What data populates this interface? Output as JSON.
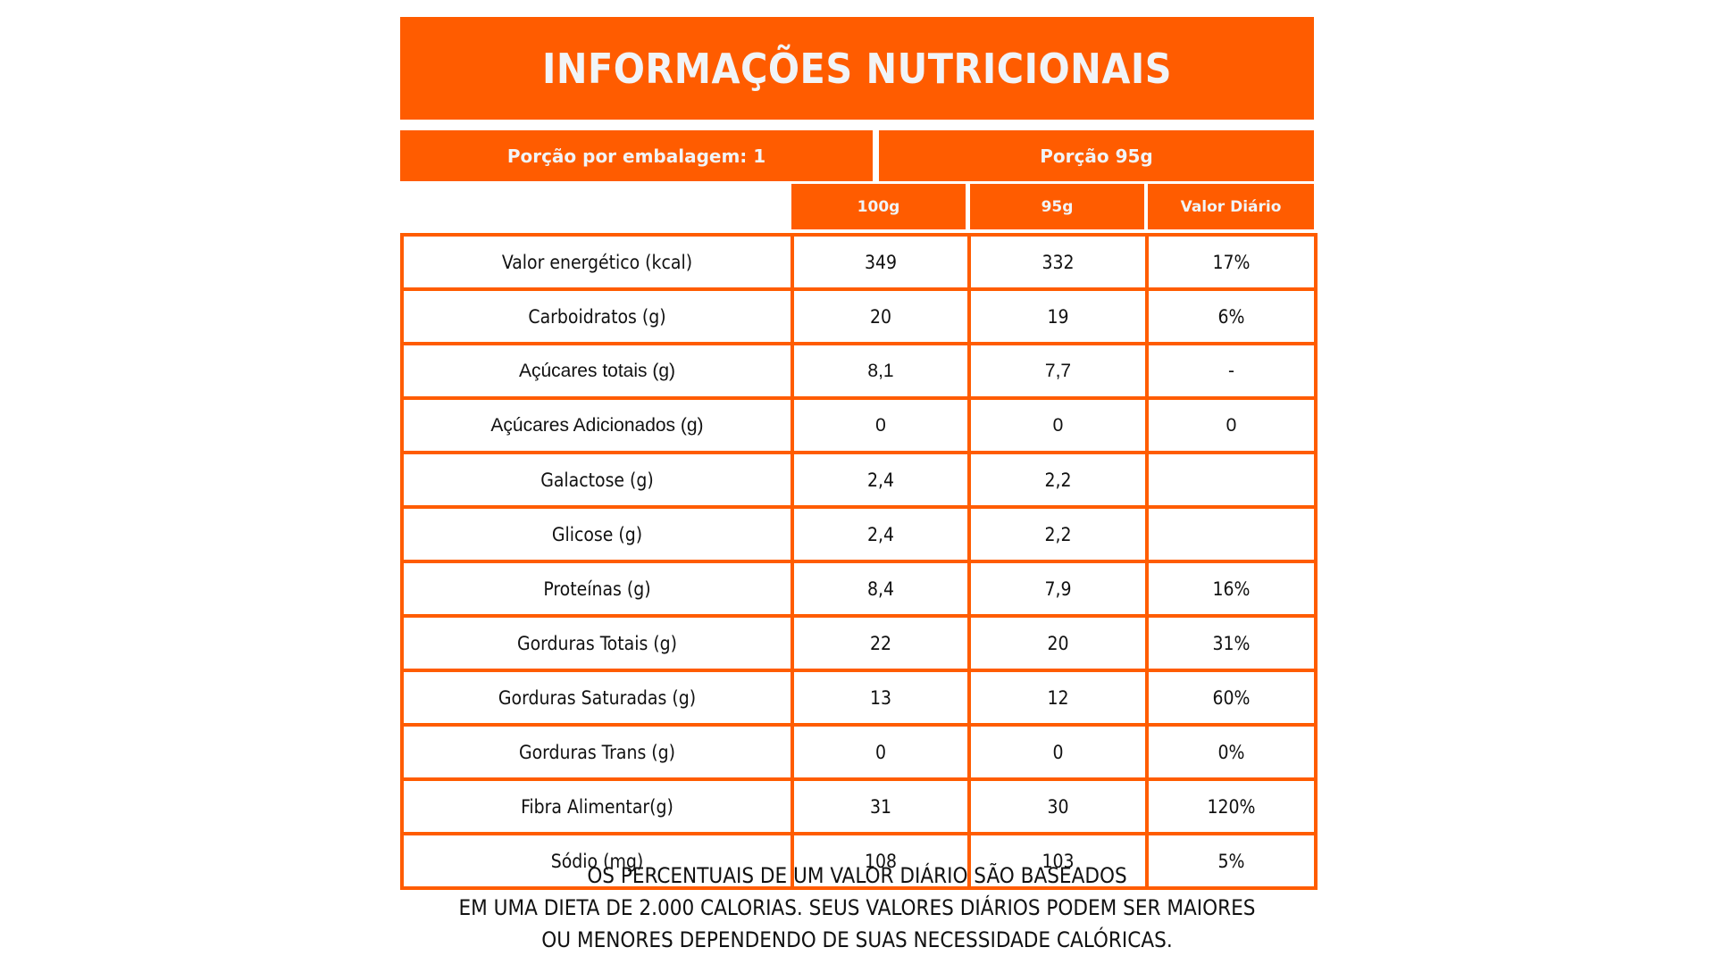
{
  "title": "INFORMAÇÕES NUTRICIONAIS",
  "colors": {
    "accent": "#FF5C00",
    "header_text": "#F1F4F7",
    "body_text": "#111111"
  },
  "serving": {
    "per_package": "Porção por embalagem: 1",
    "portion": "Porção  95g"
  },
  "columns": [
    "100g",
    "95g",
    "Valor Diário"
  ],
  "rows": [
    {
      "label": "Valor energético (kcal)",
      "per100g": "349",
      "per95g": "332",
      "dv": "17%"
    },
    {
      "label": "Carboidratos (g)",
      "per100g": "20",
      "per95g": "19",
      "dv": "6%"
    },
    {
      "label": "Açúcares totais (g)",
      "per100g": "8,1",
      "per95g": "7,7",
      "dv": "-"
    },
    {
      "label": "Açúcares Adicionados (g)",
      "per100g": "0",
      "per95g": "0",
      "dv": "0"
    },
    {
      "label": "Galactose (g)",
      "per100g": "2,4",
      "per95g": "2,2",
      "dv": ""
    },
    {
      "label": "Glicose (g)",
      "per100g": "2,4",
      "per95g": "2,2",
      "dv": ""
    },
    {
      "label": "Proteínas (g)",
      "per100g": "8,4",
      "per95g": "7,9",
      "dv": "16%"
    },
    {
      "label": "Gorduras Totais (g)",
      "per100g": "22",
      "per95g": "20",
      "dv": "31%"
    },
    {
      "label": "Gorduras Saturadas (g)",
      "per100g": "13",
      "per95g": "12",
      "dv": "60%"
    },
    {
      "label": "Gorduras Trans (g)",
      "per100g": "0",
      "per95g": "0",
      "dv": "0%"
    },
    {
      "label": "Fibra Alimentar(g)",
      "per100g": "31",
      "per95g": "30",
      "dv": "120%"
    },
    {
      "label": "Sódio (mg)",
      "per100g": "108",
      "per95g": "103",
      "dv": "5%"
    }
  ],
  "footnote": [
    "OS PERCENTUAIS DE UM VALOR DIÁRIO SÃO BASEADOS",
    "EM UMA DIETA DE 2.000 CALORIAS. SEUS VALORES DIÁRIOS PODEM SER MAIORES",
    "OU MENORES DEPENDENDO DE SUAS NECESSIDADE CALÓRICAS."
  ]
}
